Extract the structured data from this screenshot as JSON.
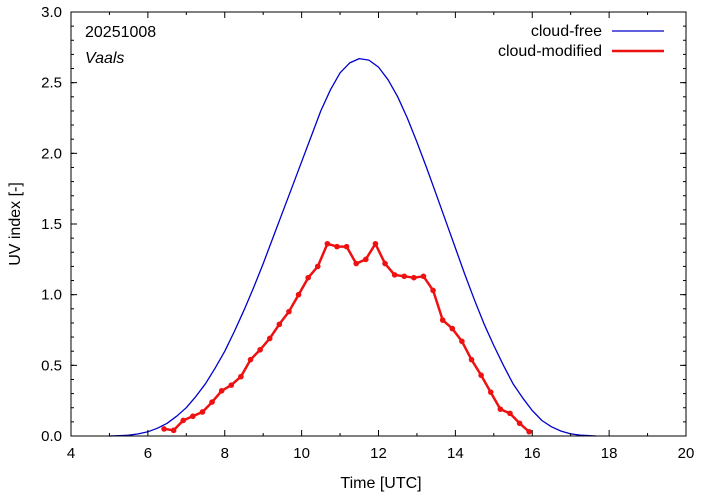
{
  "chart_data": {
    "type": "line",
    "title": "",
    "annotations": {
      "date": "20251008",
      "location": "Vaals"
    },
    "xlabel": "Time  [UTC]",
    "ylabel": "UV index  [-]",
    "xlim": [
      4,
      20
    ],
    "ylim": [
      0,
      3.0
    ],
    "x_ticks": [
      4,
      6,
      8,
      10,
      12,
      14,
      16,
      18,
      20
    ],
    "x_tick_labels": [
      "4",
      "6",
      "8",
      "10",
      "12",
      "14",
      "16",
      "18",
      "20"
    ],
    "y_ticks": [
      0,
      0.5,
      1.0,
      1.5,
      2.0,
      2.5,
      3.0
    ],
    "y_tick_labels": [
      "0.0",
      "0.5",
      "1.0",
      "1.5",
      "2.0",
      "2.5",
      "3.0"
    ],
    "grid": false,
    "legend_position": "top-right",
    "series": [
      {
        "name": "cloud-free",
        "color": "#0000cc",
        "marker": "none",
        "x": [
          5.0,
          5.25,
          5.5,
          5.75,
          6.0,
          6.25,
          6.5,
          6.75,
          7.0,
          7.25,
          7.5,
          7.75,
          8.0,
          8.25,
          8.5,
          8.75,
          9.0,
          9.25,
          9.5,
          9.75,
          10.0,
          10.25,
          10.5,
          10.75,
          11.0,
          11.25,
          11.5,
          11.75,
          12.0,
          12.25,
          12.5,
          12.75,
          13.0,
          13.25,
          13.5,
          13.75,
          14.0,
          14.25,
          14.5,
          14.75,
          15.0,
          15.25,
          15.5,
          15.75,
          16.0,
          16.25,
          16.5,
          16.75,
          17.0,
          17.25,
          17.5,
          17.65
        ],
        "y": [
          0.0,
          0.002,
          0.006,
          0.015,
          0.03,
          0.055,
          0.09,
          0.14,
          0.2,
          0.28,
          0.37,
          0.48,
          0.6,
          0.74,
          0.89,
          1.05,
          1.22,
          1.4,
          1.58,
          1.76,
          1.94,
          2.12,
          2.3,
          2.45,
          2.57,
          2.64,
          2.67,
          2.66,
          2.61,
          2.52,
          2.4,
          2.25,
          2.08,
          1.9,
          1.71,
          1.52,
          1.33,
          1.14,
          0.96,
          0.79,
          0.64,
          0.5,
          0.37,
          0.27,
          0.18,
          0.11,
          0.065,
          0.035,
          0.015,
          0.006,
          0.002,
          0.0
        ]
      },
      {
        "name": "cloud-modified",
        "color": "#ee1111",
        "marker": "dot",
        "x": [
          6.42,
          6.67,
          6.92,
          7.17,
          7.42,
          7.67,
          7.92,
          8.17,
          8.42,
          8.67,
          8.92,
          9.17,
          9.42,
          9.67,
          9.92,
          10.17,
          10.42,
          10.67,
          10.92,
          11.17,
          11.42,
          11.67,
          11.92,
          12.17,
          12.42,
          12.67,
          12.92,
          13.17,
          13.42,
          13.67,
          13.92,
          14.17,
          14.42,
          14.67,
          14.92,
          15.17,
          15.42,
          15.67,
          15.92
        ],
        "y": [
          0.05,
          0.04,
          0.11,
          0.14,
          0.17,
          0.24,
          0.32,
          0.36,
          0.42,
          0.54,
          0.61,
          0.69,
          0.79,
          0.88,
          1.0,
          1.12,
          1.2,
          1.36,
          1.34,
          1.34,
          1.22,
          1.25,
          1.36,
          1.22,
          1.14,
          1.13,
          1.12,
          1.13,
          1.03,
          0.82,
          0.76,
          0.67,
          0.54,
          0.43,
          0.31,
          0.19,
          0.16,
          0.09,
          0.03
        ]
      }
    ]
  }
}
